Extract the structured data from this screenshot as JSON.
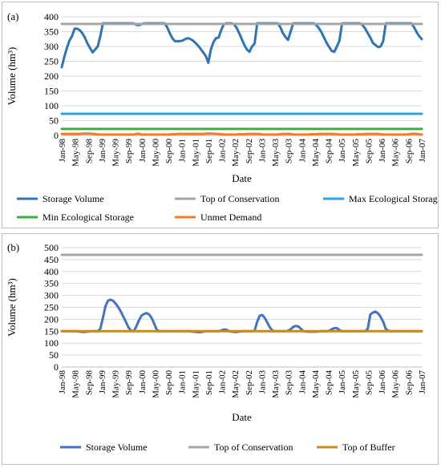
{
  "chart_data": [
    {
      "type": "line",
      "panel_label": "(a)",
      "xlabel": "Date",
      "ylabel": "Volume (hm³)",
      "ylim": [
        0,
        400
      ],
      "y_ticks": [
        0,
        50,
        100,
        150,
        200,
        250,
        300,
        350,
        400
      ],
      "x_tick_labels": [
        "Jan-98",
        "May-98",
        "Sep-98",
        "Jan-99",
        "May-99",
        "Sep-99",
        "Jan-00",
        "May-00",
        "Sep-00",
        "Jan-01",
        "May-01",
        "Sep-01",
        "Jan-02",
        "May-02",
        "Sep-02",
        "Jan-03",
        "May-03",
        "Sep-03",
        "Jan-04",
        "May-04",
        "Sep-04",
        "Jan-05",
        "May-05",
        "Sep-05",
        "Jan-06",
        "May-06",
        "Sep-06",
        "Jan-07"
      ],
      "legend_position": "bottom",
      "series": [
        {
          "name": "Storage Volume",
          "color": "#2E75B6",
          "values": [
            230,
            265,
            295,
            320,
            335,
            360,
            360,
            355,
            345,
            330,
            310,
            295,
            280,
            290,
            300,
            335,
            378,
            378,
            378,
            378,
            378,
            378,
            378,
            378,
            378,
            378,
            378,
            378,
            378,
            373,
            372,
            375,
            378,
            378,
            378,
            378,
            378,
            378,
            378,
            378,
            378,
            365,
            345,
            328,
            318,
            318,
            318,
            320,
            325,
            328,
            325,
            320,
            312,
            303,
            292,
            280,
            268,
            245,
            290,
            315,
            328,
            330,
            355,
            375,
            378,
            378,
            378,
            375,
            363,
            345,
            325,
            305,
            290,
            282,
            300,
            310,
            378,
            378,
            378,
            378,
            378,
            378,
            378,
            378,
            378,
            365,
            345,
            332,
            322,
            350,
            378,
            378,
            378,
            378,
            378,
            378,
            378,
            378,
            378,
            372,
            362,
            348,
            330,
            312,
            298,
            285,
            282,
            300,
            320,
            378,
            378,
            378,
            378,
            378,
            378,
            378,
            378,
            372,
            360,
            345,
            330,
            312,
            305,
            298,
            300,
            318,
            378,
            378,
            378,
            378,
            378,
            378,
            378,
            378,
            378,
            378,
            378,
            365,
            348,
            335,
            325
          ]
        },
        {
          "name": "Top of Conservation",
          "color": "#A5A5A5",
          "values": [
            376,
            376
          ]
        },
        {
          "name": "Max Ecological Storage",
          "color": "#29A8E0",
          "values": [
            73,
            73
          ]
        },
        {
          "name": "Min Ecological Storage",
          "color": "#3DAE3D",
          "values": [
            22,
            22
          ]
        },
        {
          "name": "Unmet Demand",
          "color": "#F07D2B",
          "values": [
            5,
            5,
            5,
            5,
            5,
            5,
            5,
            5,
            6,
            6,
            6,
            6,
            5,
            5,
            3,
            3,
            3,
            3,
            3,
            3,
            3,
            3,
            3,
            3,
            3,
            3,
            3,
            3,
            3,
            5,
            6,
            3,
            3,
            3,
            3,
            3,
            3,
            3,
            3,
            3,
            3,
            3,
            3,
            4,
            4,
            5,
            5,
            5,
            5,
            5,
            5,
            5,
            5,
            5,
            5,
            5,
            6,
            6,
            6,
            6,
            5,
            5,
            4,
            3,
            3,
            3,
            3,
            3,
            3,
            4,
            4,
            4,
            5,
            5,
            5,
            5,
            5,
            5,
            3,
            3,
            3,
            3,
            3,
            3,
            3,
            4,
            5,
            5,
            5,
            5,
            3,
            3,
            3,
            3,
            3,
            3,
            3,
            4,
            4,
            4,
            5,
            5,
            5,
            5,
            5,
            5,
            5,
            4,
            3,
            3,
            3,
            3,
            3,
            3,
            3,
            4,
            4,
            4,
            5,
            5,
            5,
            5,
            5,
            5,
            4,
            3,
            3,
            3,
            3,
            3,
            3,
            3,
            3,
            3,
            3,
            4,
            5,
            6,
            5,
            4,
            3
          ]
        }
      ]
    },
    {
      "type": "line",
      "panel_label": "(b)",
      "xlabel": "Date",
      "ylabel": "Volume (hm³)",
      "ylim": [
        0,
        500
      ],
      "y_ticks": [
        0,
        50,
        100,
        150,
        200,
        250,
        300,
        350,
        400,
        450,
        500
      ],
      "x_tick_labels": [
        "Jan-98",
        "May-98",
        "Sep-98",
        "Jan-99",
        "May-99",
        "Sep-99",
        "Jan-00",
        "May-00",
        "Sep-00",
        "Jan-01",
        "May-01",
        "Sep-01",
        "Jan-02",
        "May-02",
        "Sep-02",
        "Jan-03",
        "May-03",
        "Sep-03",
        "Jan-04",
        "May-04",
        "Sep-04",
        "Jan-05",
        "May-05",
        "Sep-05",
        "Jan-06",
        "May-06",
        "Sep-06",
        "Jan-07"
      ],
      "legend_position": "bottom",
      "series": [
        {
          "name": "Storage Volume",
          "color": "#4472C4",
          "values": [
            150,
            150,
            150,
            150,
            150,
            150,
            150,
            148,
            147,
            147,
            148,
            150,
            150,
            150,
            150,
            160,
            205,
            255,
            278,
            282,
            277,
            265,
            250,
            232,
            210,
            188,
            165,
            152,
            150,
            170,
            195,
            215,
            222,
            226,
            220,
            205,
            180,
            155,
            150,
            150,
            150,
            150,
            150,
            150,
            150,
            150,
            150,
            150,
            150,
            150,
            150,
            148,
            147,
            146,
            146,
            148,
            150,
            150,
            150,
            150,
            150,
            150,
            153,
            157,
            157,
            150,
            148,
            147,
            147,
            148,
            150,
            150,
            150,
            150,
            150,
            152,
            190,
            215,
            218,
            205,
            185,
            165,
            152,
            150,
            150,
            150,
            150,
            150,
            152,
            158,
            168,
            172,
            170,
            160,
            150,
            149,
            148,
            148,
            148,
            148,
            149,
            150,
            150,
            150,
            152,
            158,
            163,
            163,
            155,
            150,
            150,
            150,
            150,
            150,
            150,
            150,
            150,
            150,
            150,
            160,
            220,
            228,
            232,
            225,
            210,
            190,
            160,
            152,
            150,
            150,
            150,
            150,
            150,
            150,
            150,
            150,
            150,
            150,
            150,
            150,
            150
          ]
        },
        {
          "name": "Top of Conservation",
          "color": "#A5A5A5",
          "values": [
            470,
            470
          ]
        },
        {
          "name": "Top of Buffer",
          "color": "#C98B1E",
          "values": [
            150,
            150
          ]
        }
      ]
    }
  ]
}
